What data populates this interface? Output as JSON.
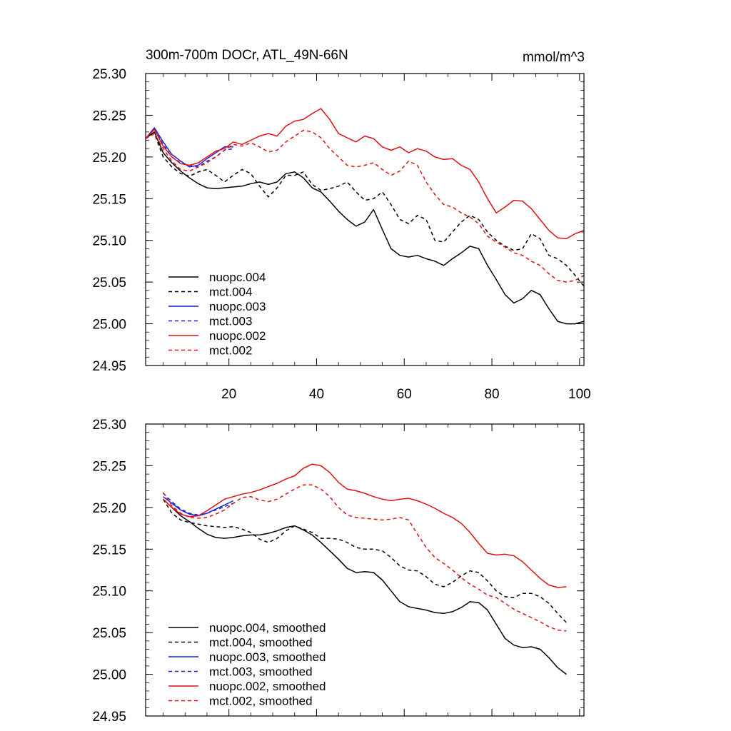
{
  "chart_data": [
    {
      "type": "line",
      "title": "300m-700m DOCr, ATL_49N-66N",
      "units": "mmol/m^3",
      "xlim": [
        1,
        101
      ],
      "ylim": [
        24.95,
        25.3
      ],
      "xticks": [
        20,
        40,
        60,
        80,
        100
      ],
      "xtick_labels": [
        "20",
        "40",
        "60",
        "80",
        "100"
      ],
      "yticks": [
        24.95,
        25.0,
        25.05,
        25.1,
        25.15,
        25.2,
        25.25,
        25.3
      ],
      "ytick_labels": [
        "24.95",
        "25.00",
        "25.05",
        "25.10",
        "25.15",
        "25.20",
        "25.25",
        "25.30"
      ],
      "legend_position": "lower-left",
      "series": [
        {
          "name": "nuopc.004",
          "color": "#000000",
          "dash": "solid",
          "x": [
            1,
            3,
            5,
            7,
            9,
            11,
            13,
            15,
            17,
            19,
            21,
            23,
            25,
            27,
            29,
            31,
            33,
            35,
            37,
            39,
            41,
            43,
            45,
            47,
            49,
            51,
            53,
            55,
            57,
            59,
            61,
            63,
            65,
            67,
            69,
            71,
            73,
            75,
            77,
            79,
            81,
            83,
            85,
            87,
            89,
            91,
            93,
            95,
            97,
            99,
            101
          ],
          "y": [
            25.222,
            25.23,
            25.205,
            25.193,
            25.183,
            25.175,
            25.168,
            25.163,
            25.162,
            25.163,
            25.164,
            25.165,
            25.168,
            25.17,
            25.167,
            25.17,
            25.18,
            25.182,
            25.175,
            25.163,
            25.158,
            25.147,
            25.135,
            25.125,
            25.117,
            25.122,
            25.137,
            25.113,
            25.09,
            25.082,
            25.08,
            25.082,
            25.078,
            25.075,
            25.07,
            25.078,
            25.085,
            25.093,
            25.09,
            25.07,
            25.053,
            25.035,
            25.025,
            25.03,
            25.04,
            25.035,
            25.018,
            25.003,
            25.0,
            25.0,
            25.003
          ]
        },
        {
          "name": "mct.004",
          "color": "#000000",
          "dash": "dashed",
          "x": [
            1,
            3,
            5,
            7,
            9,
            11,
            13,
            15,
            17,
            19,
            21,
            23,
            25,
            27,
            29,
            31,
            33,
            35,
            37,
            39,
            41,
            43,
            45,
            47,
            49,
            51,
            53,
            55,
            57,
            59,
            61,
            63,
            65,
            67,
            69,
            71,
            73,
            75,
            77,
            79,
            81,
            83,
            85,
            87,
            89,
            91,
            93,
            95,
            97,
            99,
            101
          ],
          "y": [
            25.222,
            25.228,
            25.2,
            25.188,
            25.18,
            25.177,
            25.182,
            25.185,
            25.178,
            25.17,
            25.178,
            25.185,
            25.18,
            25.165,
            25.152,
            25.163,
            25.178,
            25.178,
            25.182,
            25.167,
            25.16,
            25.162,
            25.165,
            25.17,
            25.158,
            25.148,
            25.15,
            25.158,
            25.143,
            25.125,
            25.12,
            25.13,
            25.125,
            25.1,
            25.098,
            25.11,
            25.122,
            25.13,
            25.125,
            25.11,
            25.1,
            25.093,
            25.088,
            25.09,
            25.108,
            25.102,
            25.082,
            25.078,
            25.07,
            25.058,
            25.045
          ]
        },
        {
          "name": "nuopc.003",
          "color": "#1f1fd6",
          "dash": "solid",
          "x": [
            1,
            3,
            5,
            7,
            9,
            11,
            13,
            15,
            17,
            19,
            21
          ],
          "y": [
            25.222,
            25.235,
            25.218,
            25.203,
            25.195,
            25.188,
            25.19,
            25.198,
            25.205,
            25.212,
            25.212
          ]
        },
        {
          "name": "mct.003",
          "color": "#1f1fd6",
          "dash": "dashed",
          "x": [
            1,
            3,
            5,
            7,
            9,
            11,
            13,
            15,
            17,
            19,
            21
          ],
          "y": [
            25.222,
            25.233,
            25.215,
            25.2,
            25.193,
            25.19,
            25.188,
            25.195,
            25.2,
            25.208,
            25.21
          ]
        },
        {
          "name": "nuopc.002",
          "color": "#e01010",
          "dash": "solid",
          "x": [
            1,
            3,
            5,
            7,
            9,
            11,
            13,
            15,
            17,
            19,
            21,
            23,
            25,
            27,
            29,
            31,
            33,
            35,
            37,
            39,
            41,
            43,
            45,
            47,
            49,
            51,
            53,
            55,
            57,
            59,
            61,
            63,
            65,
            67,
            69,
            71,
            73,
            75,
            77,
            79,
            81,
            83,
            85,
            87,
            89,
            91,
            93,
            95,
            97,
            99,
            101
          ],
          "y": [
            25.222,
            25.233,
            25.213,
            25.2,
            25.192,
            25.19,
            25.193,
            25.2,
            25.207,
            25.21,
            25.218,
            25.215,
            25.22,
            25.225,
            25.228,
            25.225,
            25.237,
            25.243,
            25.245,
            25.252,
            25.258,
            25.245,
            25.228,
            25.223,
            25.218,
            25.225,
            25.222,
            25.212,
            25.208,
            25.212,
            25.205,
            25.21,
            25.207,
            25.2,
            25.197,
            25.198,
            25.19,
            25.185,
            25.17,
            25.15,
            25.133,
            25.14,
            25.148,
            25.147,
            25.138,
            25.125,
            25.112,
            25.103,
            25.102,
            25.108,
            25.112
          ]
        },
        {
          "name": "mct.002",
          "color": "#e01010",
          "dash": "dashed",
          "x": [
            1,
            3,
            5,
            7,
            9,
            11,
            13,
            15,
            17,
            19,
            21,
            23,
            25,
            27,
            29,
            31,
            33,
            35,
            37,
            39,
            41,
            43,
            45,
            47,
            49,
            51,
            53,
            55,
            57,
            59,
            61,
            63,
            65,
            67,
            69,
            71,
            73,
            75,
            77,
            79,
            81,
            83,
            85,
            87,
            89,
            91,
            93,
            95,
            97,
            99,
            101
          ],
          "y": [
            25.222,
            25.228,
            25.21,
            25.195,
            25.185,
            25.183,
            25.188,
            25.193,
            25.2,
            25.208,
            25.215,
            25.213,
            25.217,
            25.212,
            25.206,
            25.208,
            25.218,
            25.225,
            25.232,
            25.23,
            25.223,
            25.21,
            25.2,
            25.19,
            25.188,
            25.19,
            25.193,
            25.185,
            25.178,
            25.183,
            25.195,
            25.19,
            25.17,
            25.155,
            25.143,
            25.14,
            25.133,
            25.128,
            25.12,
            25.105,
            25.098,
            25.092,
            25.085,
            25.082,
            25.075,
            25.07,
            25.06,
            25.052,
            25.05,
            25.052,
            25.058
          ]
        }
      ]
    },
    {
      "type": "line",
      "xlim": [
        1,
        101
      ],
      "ylim": [
        24.95,
        25.3
      ],
      "xticks": [
        20,
        40,
        60,
        80,
        100
      ],
      "yticks": [
        24.95,
        25.0,
        25.05,
        25.1,
        25.15,
        25.2,
        25.25,
        25.3
      ],
      "ytick_labels": [
        "24.95",
        "25.00",
        "25.05",
        "25.10",
        "25.15",
        "25.20",
        "25.25",
        "25.30"
      ],
      "legend_position": "lower-left",
      "series": [
        {
          "name": "nuopc.004, smoothed",
          "color": "#000000",
          "dash": "solid",
          "x": [
            5,
            7,
            9,
            11,
            13,
            15,
            17,
            19,
            21,
            23,
            25,
            27,
            29,
            31,
            33,
            35,
            37,
            39,
            41,
            43,
            45,
            47,
            49,
            51,
            53,
            55,
            57,
            59,
            61,
            63,
            65,
            67,
            69,
            71,
            73,
            75,
            77,
            79,
            81,
            83,
            85,
            87,
            89,
            91,
            93,
            95,
            97
          ],
          "y": [
            25.21,
            25.2,
            25.19,
            25.183,
            25.175,
            25.168,
            25.164,
            25.163,
            25.164,
            25.166,
            25.167,
            25.167,
            25.169,
            25.172,
            25.176,
            25.178,
            25.173,
            25.167,
            25.158,
            25.148,
            25.138,
            25.127,
            25.122,
            25.123,
            25.122,
            25.113,
            25.1,
            25.087,
            25.081,
            25.079,
            25.077,
            25.074,
            25.073,
            25.075,
            25.08,
            25.087,
            25.086,
            25.077,
            25.06,
            25.043,
            25.035,
            25.032,
            25.033,
            25.03,
            25.02,
            25.008,
            25.0
          ]
        },
        {
          "name": "mct.004, smoothed",
          "color": "#000000",
          "dash": "dashed",
          "x": [
            5,
            7,
            9,
            11,
            13,
            15,
            17,
            19,
            21,
            23,
            25,
            27,
            29,
            31,
            33,
            35,
            37,
            39,
            41,
            43,
            45,
            47,
            49,
            51,
            53,
            55,
            57,
            59,
            61,
            63,
            65,
            67,
            69,
            71,
            73,
            75,
            77,
            79,
            81,
            83,
            85,
            87,
            89,
            91,
            93,
            95,
            97
          ],
          "y": [
            25.21,
            25.193,
            25.185,
            25.182,
            25.18,
            25.178,
            25.177,
            25.176,
            25.177,
            25.174,
            25.17,
            25.162,
            25.158,
            25.163,
            25.172,
            25.178,
            25.174,
            25.17,
            25.163,
            25.163,
            25.162,
            25.158,
            25.152,
            25.15,
            25.15,
            25.148,
            25.14,
            25.13,
            25.125,
            25.124,
            25.117,
            25.108,
            25.105,
            25.11,
            25.118,
            25.124,
            25.122,
            25.112,
            25.1,
            25.093,
            25.092,
            25.097,
            25.097,
            25.093,
            25.085,
            25.073,
            25.062
          ]
        },
        {
          "name": "nuopc.003, smoothed",
          "color": "#1f1fd6",
          "dash": "solid",
          "x": [
            5,
            7,
            9,
            11,
            13,
            15,
            17,
            19,
            21
          ],
          "y": [
            25.213,
            25.205,
            25.197,
            25.192,
            25.19,
            25.193,
            25.198,
            25.203,
            25.208
          ]
        },
        {
          "name": "mct.003, smoothed",
          "color": "#1f1fd6",
          "dash": "dashed",
          "x": [
            5,
            7,
            9,
            11,
            13,
            15,
            17,
            19,
            21
          ],
          "y": [
            25.217,
            25.207,
            25.198,
            25.193,
            25.191,
            25.193,
            25.197,
            25.201,
            25.205
          ]
        },
        {
          "name": "nuopc.002, smoothed",
          "color": "#e01010",
          "dash": "solid",
          "x": [
            5,
            7,
            9,
            11,
            13,
            15,
            17,
            19,
            21,
            23,
            25,
            27,
            29,
            31,
            33,
            35,
            37,
            39,
            41,
            43,
            45,
            47,
            49,
            51,
            53,
            55,
            57,
            59,
            61,
            63,
            65,
            67,
            69,
            71,
            73,
            75,
            77,
            79,
            81,
            83,
            85,
            87,
            89,
            91,
            93,
            95,
            97
          ],
          "y": [
            25.21,
            25.2,
            25.192,
            25.189,
            25.19,
            25.196,
            25.203,
            25.21,
            25.213,
            25.216,
            25.218,
            25.221,
            25.225,
            25.229,
            25.234,
            25.238,
            25.247,
            25.252,
            25.25,
            25.242,
            25.23,
            25.222,
            25.22,
            25.217,
            25.213,
            25.21,
            25.208,
            25.21,
            25.211,
            25.208,
            25.204,
            25.199,
            25.193,
            25.188,
            25.181,
            25.17,
            25.157,
            25.145,
            25.143,
            25.144,
            25.142,
            25.135,
            25.125,
            25.115,
            25.107,
            25.104,
            25.105
          ]
        },
        {
          "name": "mct.002, smoothed",
          "color": "#e01010",
          "dash": "dashed",
          "x": [
            5,
            7,
            9,
            11,
            13,
            15,
            17,
            19,
            21,
            23,
            25,
            27,
            29,
            31,
            33,
            35,
            37,
            39,
            41,
            43,
            45,
            47,
            49,
            51,
            53,
            55,
            57,
            59,
            61,
            63,
            65,
            67,
            69,
            71,
            73,
            75,
            77,
            79,
            81,
            83,
            85,
            87,
            89,
            91,
            93,
            95,
            97
          ],
          "y": [
            25.218,
            25.202,
            25.193,
            25.188,
            25.187,
            25.188,
            25.192,
            25.197,
            25.205,
            25.212,
            25.213,
            25.209,
            25.207,
            25.21,
            25.216,
            25.222,
            25.227,
            25.227,
            25.222,
            25.213,
            25.2,
            25.191,
            25.188,
            25.187,
            25.186,
            25.185,
            25.186,
            25.188,
            25.185,
            25.168,
            25.152,
            25.14,
            25.133,
            25.125,
            25.116,
            25.108,
            25.102,
            25.095,
            25.092,
            25.085,
            25.078,
            25.073,
            25.068,
            25.063,
            25.057,
            25.053,
            25.052
          ]
        }
      ]
    }
  ]
}
